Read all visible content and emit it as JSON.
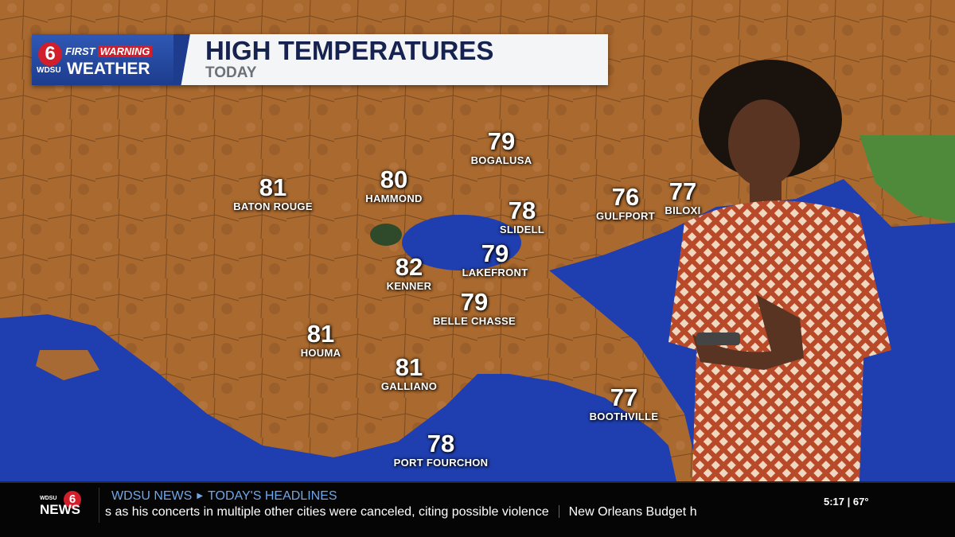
{
  "banner": {
    "station_logo": "6",
    "network": "WDSU",
    "first": "FIRST",
    "warning": "WARNING",
    "weather": "WEATHER",
    "title": "HIGH TEMPERATURES",
    "subtitle": "TODAY"
  },
  "cities": [
    {
      "name": "BATON ROUGE",
      "temp": "81"
    },
    {
      "name": "HAMMOND",
      "temp": "80"
    },
    {
      "name": "BOGALUSA",
      "temp": "79"
    },
    {
      "name": "SLIDELL",
      "temp": "78"
    },
    {
      "name": "GULFPORT",
      "temp": "76"
    },
    {
      "name": "BILOXI",
      "temp": "77"
    },
    {
      "name": "KENNER",
      "temp": "82"
    },
    {
      "name": "LAKEFRONT",
      "temp": "79"
    },
    {
      "name": "BELLE CHASSE",
      "temp": "79"
    },
    {
      "name": "HOUMA",
      "temp": "81"
    },
    {
      "name": "GALLIANO",
      "temp": "81"
    },
    {
      "name": "BOOTHVILLE",
      "temp": "77"
    },
    {
      "name": "PORT FOURCHON",
      "temp": "78"
    }
  ],
  "colors": {
    "land": "#a86a34",
    "water": "#1f3fb0",
    "banner_blue": "#1d3c8e",
    "title": "#16224f",
    "warning_red": "#d21e2b",
    "ticker_head": "#6fa7e8"
  },
  "ticker": {
    "logo_small": "WDSU",
    "logo_six": "6",
    "logo_news": "NEWS",
    "section": "WDSU NEWS",
    "subsection": "TODAY'S HEADLINES",
    "headline_1": "s as his concerts in multiple other cities were canceled, citing possible violence",
    "headline_2": "New Orleans Budget h",
    "time": "5:17",
    "temp": "67°"
  }
}
